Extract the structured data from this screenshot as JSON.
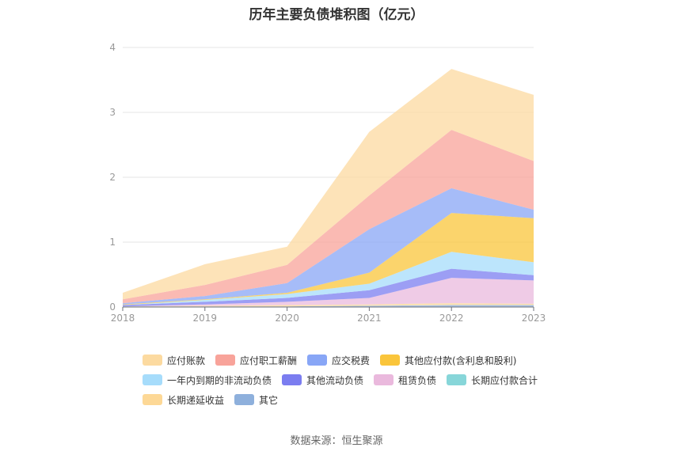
{
  "chart_data": {
    "type": "area",
    "title": "历年主要负债堆积图（亿元）",
    "x": [
      "2018",
      "2019",
      "2020",
      "2021",
      "2022",
      "2023"
    ],
    "ylim": [
      0,
      4
    ],
    "yticks": [
      "0",
      "1",
      "2",
      "3",
      "4"
    ],
    "grid": true,
    "stacked": true,
    "legend_position": "bottom",
    "series": [
      {
        "name": "其它",
        "color": "#8eb0dc",
        "values": [
          0.01,
          0.01,
          0.01,
          0.02,
          0.03,
          0.03
        ]
      },
      {
        "name": "长期递延收益",
        "color": "#fdd896",
        "values": [
          0.0,
          0.01,
          0.02,
          0.02,
          0.03,
          0.02
        ]
      },
      {
        "name": "长期应付款合计",
        "color": "#87d6d9",
        "values": [
          0.0,
          0.0,
          0.0,
          0.0,
          0.0,
          0.0
        ]
      },
      {
        "name": "租赁负债",
        "color": "#eab9dd",
        "values": [
          0.0,
          0.02,
          0.05,
          0.1,
          0.39,
          0.36
        ]
      },
      {
        "name": "其他流动负债",
        "color": "#7b7df0",
        "values": [
          0.02,
          0.04,
          0.06,
          0.12,
          0.14,
          0.08
        ]
      },
      {
        "name": "一年内到期的非流动负债",
        "color": "#a6dcfb",
        "values": [
          0.0,
          0.03,
          0.06,
          0.1,
          0.26,
          0.2
        ]
      },
      {
        "name": "其他应付款(含利息和股利)",
        "color": "#fac53b",
        "values": [
          0.01,
          0.01,
          0.02,
          0.17,
          0.6,
          0.68
        ]
      },
      {
        "name": "应交税费",
        "color": "#88a6f6",
        "values": [
          0.02,
          0.05,
          0.15,
          0.67,
          0.38,
          0.13
        ]
      },
      {
        "name": "应付职工薪酬",
        "color": "#f8a39a",
        "values": [
          0.06,
          0.17,
          0.28,
          0.52,
          0.9,
          0.75
        ]
      },
      {
        "name": "应付账款",
        "color": "#fcdaa0",
        "values": [
          0.1,
          0.32,
          0.28,
          0.98,
          0.94,
          1.02
        ]
      }
    ],
    "legend_order": [
      "应付账款",
      "应付职工薪酬",
      "应交税费",
      "其他应付款(含利息和股利)",
      "一年内到期的非流动负债",
      "其他流动负债",
      "租赁负债",
      "长期应付款合计",
      "长期递延收益",
      "其它"
    ]
  },
  "source_text": "数据来源：恒生聚源"
}
